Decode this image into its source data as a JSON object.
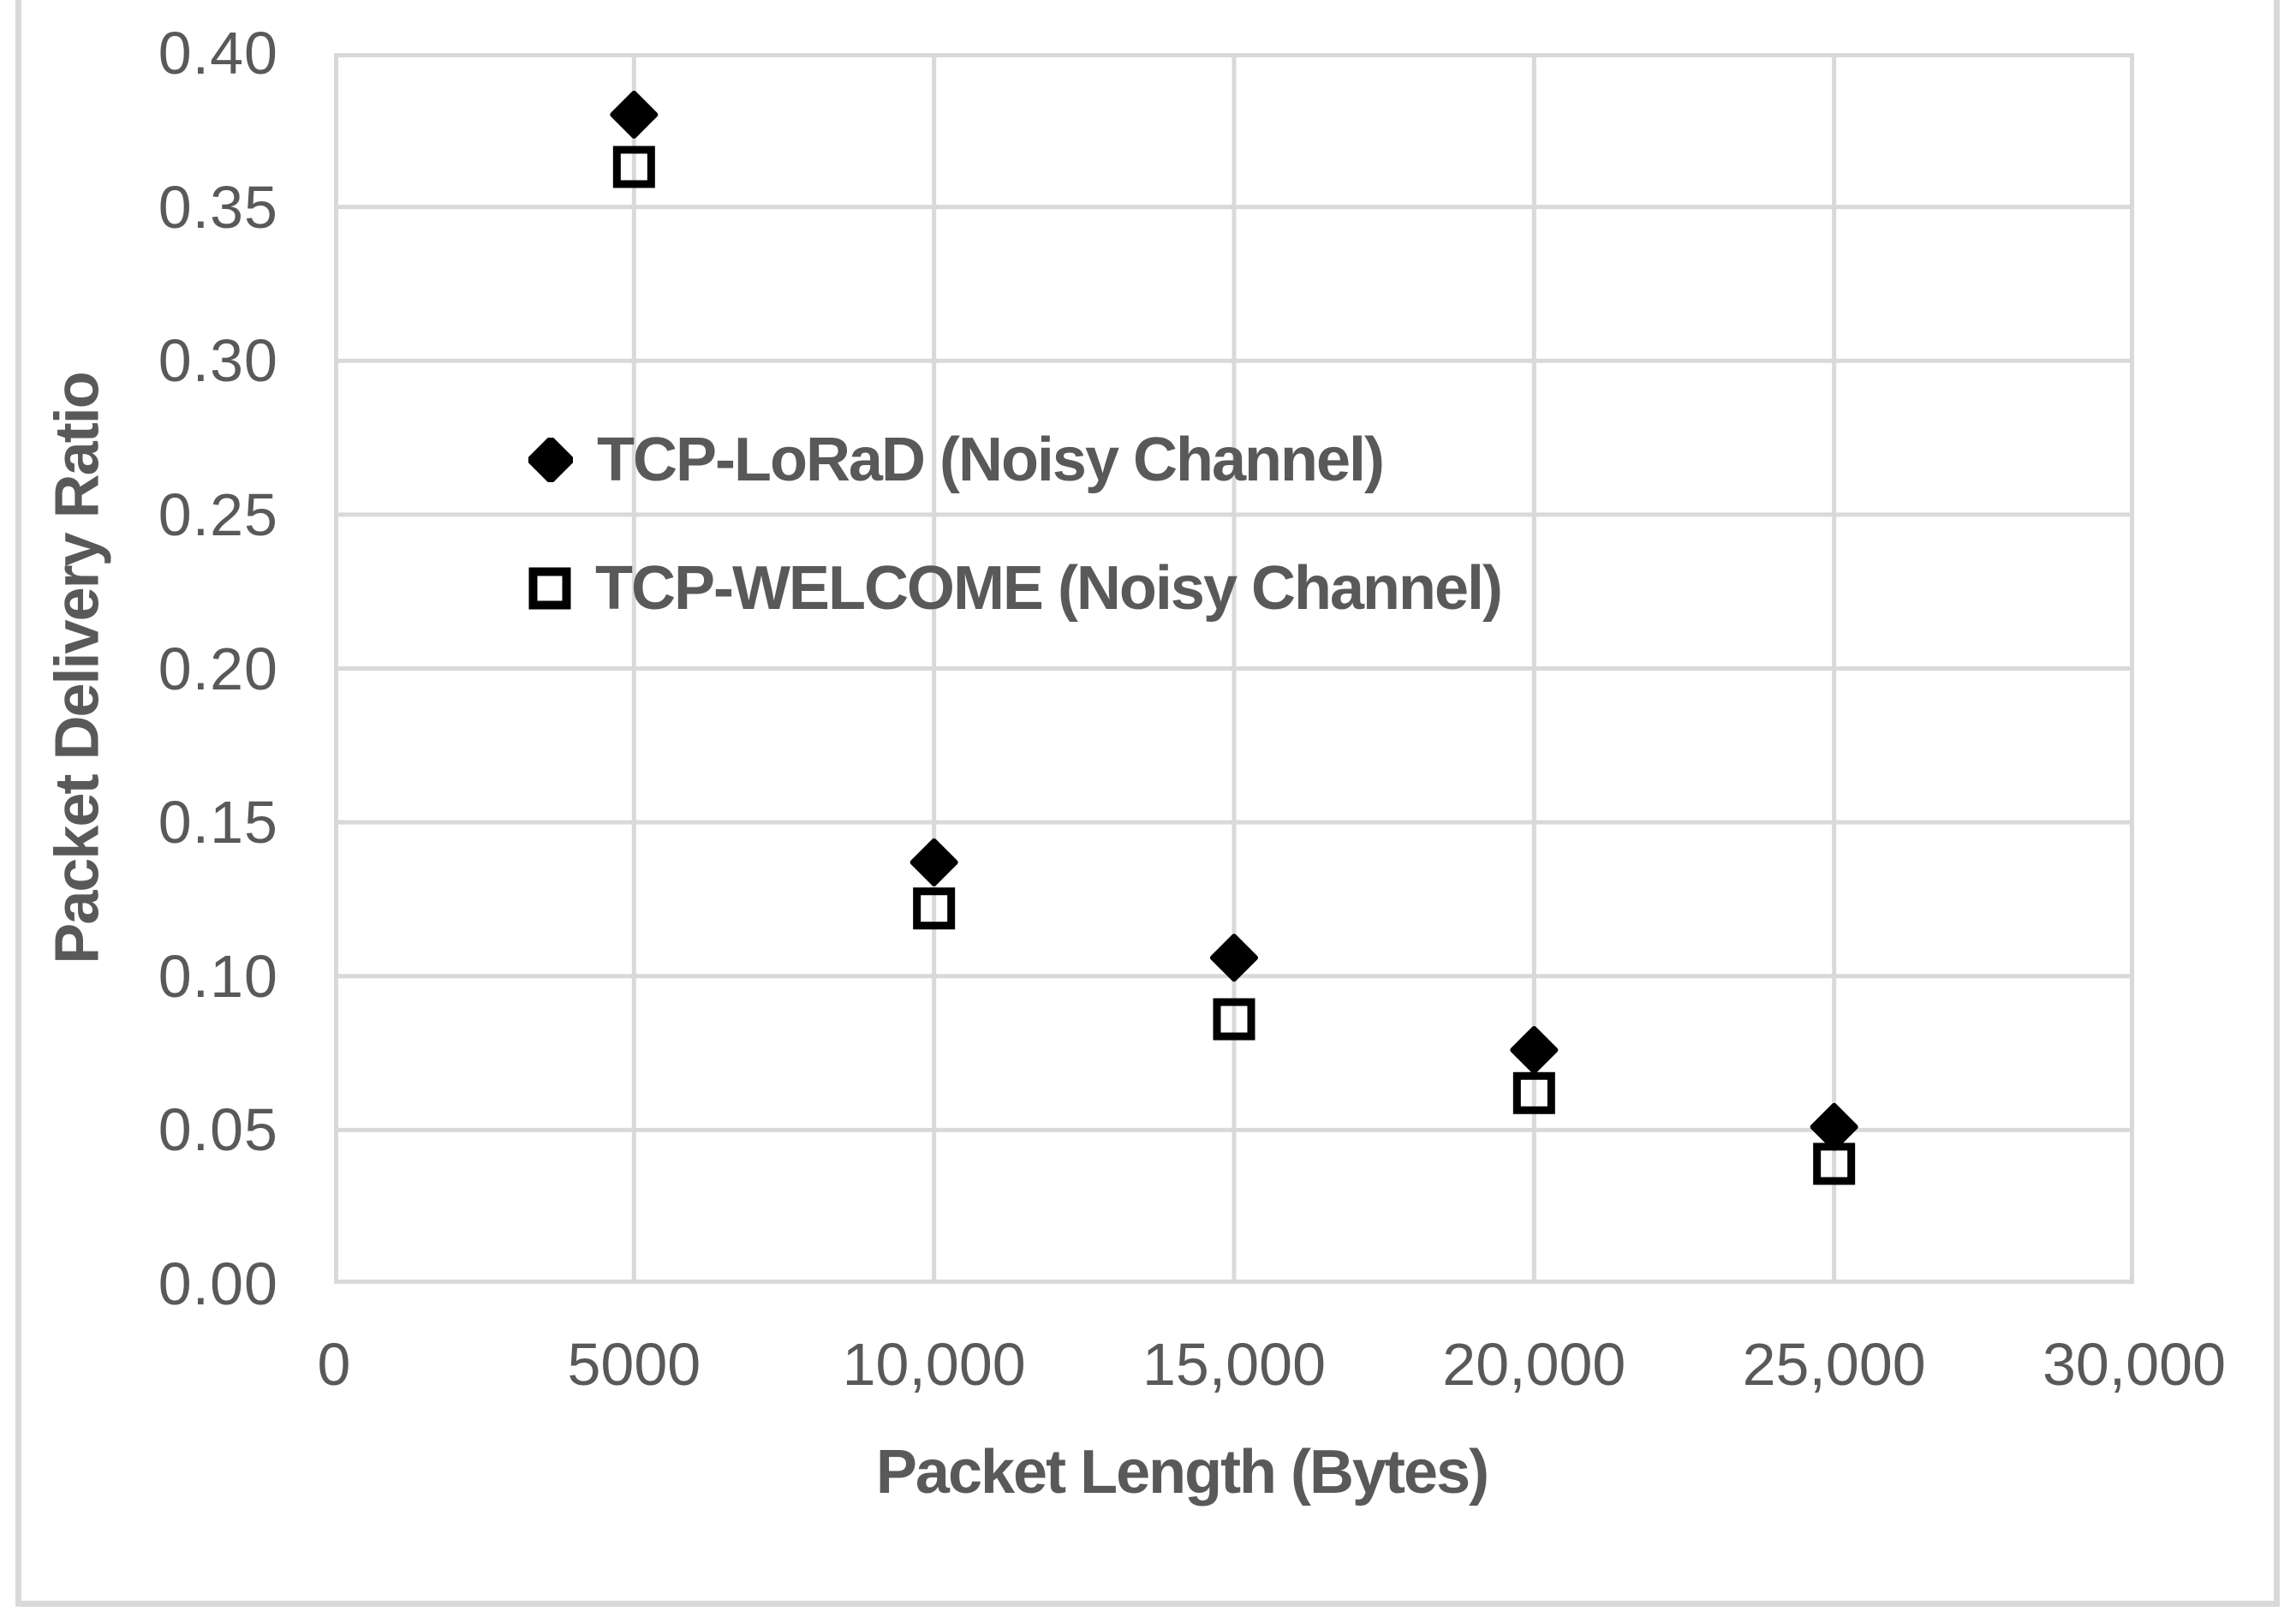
{
  "chart_data": {
    "type": "scatter",
    "title": "",
    "xlabel": "Packet Length (Bytes)",
    "ylabel": "Packet Delivery Ratio",
    "xlim": [
      0,
      30000
    ],
    "ylim": [
      0,
      0.4
    ],
    "grid": true,
    "legend_position": "inside upper-left of plot, stacked vertically",
    "x": [
      5000,
      10000,
      15000,
      20000,
      25000
    ],
    "series": [
      {
        "name": "TCP-LoRaD (Noisy Channel)",
        "marker": "filled-diamond",
        "values": [
          0.38,
          0.137,
          0.106,
          0.076,
          0.051
        ]
      },
      {
        "name": "TCP-WELCOME (Noisy Channel)",
        "marker": "open-square",
        "values": [
          0.363,
          0.122,
          0.086,
          0.062,
          0.039
        ]
      }
    ],
    "x_ticks": [
      0,
      5000,
      10000,
      15000,
      20000,
      25000,
      30000
    ],
    "x_tick_labels": [
      "0",
      "5000",
      "10,000",
      "15,000",
      "20,000",
      "25,000",
      "30,000"
    ],
    "y_ticks": [
      0.0,
      0.05,
      0.1,
      0.15,
      0.2,
      0.25,
      0.3,
      0.35,
      0.4
    ],
    "y_tick_labels": [
      "0.00",
      "0.05",
      "0.10",
      "0.15",
      "0.20",
      "0.25",
      "0.30",
      "0.35",
      "0.40"
    ],
    "colors": {
      "text": "#595959",
      "gridline": "#d9d9d9",
      "plot_border": "#d9d9d9",
      "figure_border": "#d9d9d9",
      "marker": "#000000",
      "background": "#ffffff"
    }
  }
}
